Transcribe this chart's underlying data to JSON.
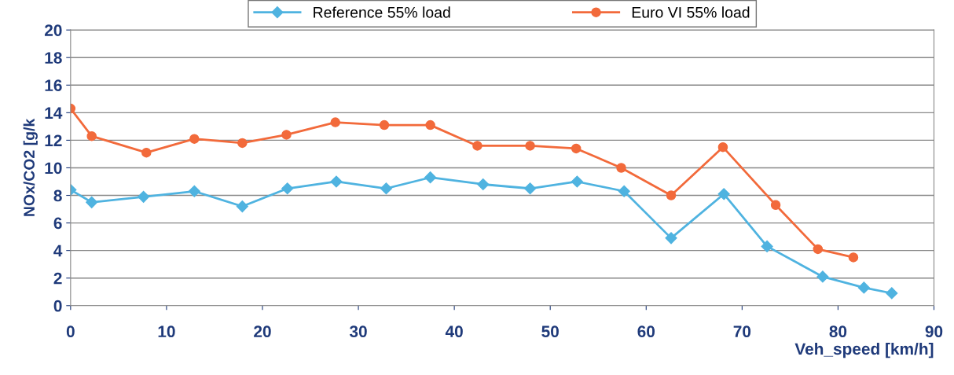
{
  "chart_data": {
    "type": "line",
    "xlabel": "Veh_speed [km/h]",
    "ylabel": "NOx/CO2 [g/k",
    "xlim": [
      0,
      90
    ],
    "xticks": [
      0,
      10,
      20,
      30,
      40,
      50,
      60,
      70,
      80,
      90
    ],
    "ylim": [
      0,
      20
    ],
    "yticks": [
      0,
      2,
      4,
      6,
      8,
      10,
      12,
      14,
      16,
      18,
      20
    ],
    "grid": "y",
    "legend": "top",
    "line_style": "solid",
    "series": [
      {
        "name": "Reference 55% load",
        "color": "#4fb3e0",
        "marker": "diamond",
        "x": [
          0,
          2.2,
          7.6,
          12.9,
          17.9,
          22.6,
          27.7,
          32.9,
          37.5,
          43.0,
          47.9,
          52.8,
          57.7,
          62.6,
          68.1,
          72.6,
          78.4,
          82.7,
          85.6
        ],
        "values": [
          8.4,
          7.5,
          7.9,
          8.3,
          7.2,
          8.5,
          9.0,
          8.5,
          9.3,
          8.8,
          8.5,
          9.0,
          8.3,
          4.9,
          8.1,
          4.3,
          2.1,
          1.3,
          0.9
        ]
      },
      {
        "name": "Euro VI 55% load",
        "color": "#f26a3b",
        "marker": "circle",
        "x": [
          0,
          2.2,
          7.9,
          12.9,
          17.9,
          22.5,
          27.6,
          32.7,
          37.5,
          42.4,
          47.9,
          52.7,
          57.4,
          62.6,
          68.0,
          73.5,
          77.9,
          81.6
        ],
        "values": [
          14.3,
          12.3,
          11.1,
          12.1,
          11.8,
          12.4,
          13.3,
          13.1,
          13.1,
          11.6,
          11.6,
          11.4,
          10.0,
          8.0,
          11.5,
          7.3,
          4.1,
          3.5
        ]
      }
    ]
  }
}
